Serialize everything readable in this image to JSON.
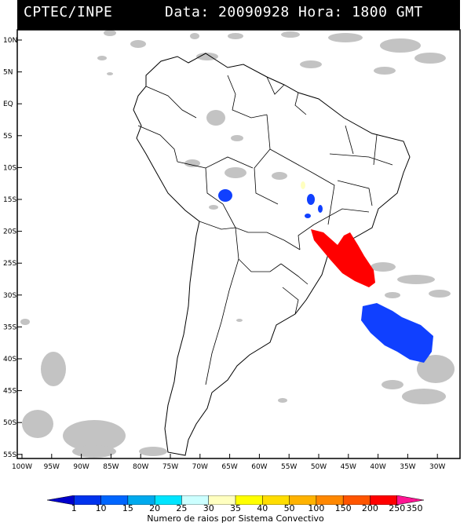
{
  "header": {
    "source": "CPTEC/INPE",
    "datetime": "Data: 20090928 Hora: 1800 GMT"
  },
  "map": {
    "lat_labels": [
      "10N",
      "5N",
      "EQ",
      "5S",
      "10S",
      "15S",
      "20S",
      "25S",
      "30S",
      "35S",
      "40S",
      "45S",
      "50S",
      "55S"
    ],
    "lon_labels": [
      "100W",
      "95W",
      "90W",
      "85W",
      "80W",
      "75W",
      "70W",
      "65W",
      "60W",
      "55W",
      "50W",
      "45W",
      "40W",
      "35W",
      "30W"
    ],
    "colors": {
      "background": "#ffffff",
      "clouds": "#b8b8b8",
      "borders": "#000000",
      "frame": "#000000"
    }
  },
  "colorbar": {
    "colors": [
      "#0000cc",
      "#0033ee",
      "#0066ff",
      "#00aaee",
      "#00e5ff",
      "#ccffff",
      "#ffffc0",
      "#ffff00",
      "#ffdd00",
      "#ffb300",
      "#ff8800",
      "#ff5500",
      "#ff0000",
      "#ff1493"
    ],
    "labels": [
      "1",
      "10",
      "15",
      "20",
      "25",
      "30",
      "35",
      "40",
      "50",
      "100",
      "150",
      "200",
      "250",
      "350"
    ],
    "title": "Numero de raios por Sistema Convectivo"
  },
  "systems": [
    {
      "color": "#ff0000"
    },
    {
      "color": "#1040ff"
    },
    {
      "color": "#ffffc0"
    }
  ]
}
